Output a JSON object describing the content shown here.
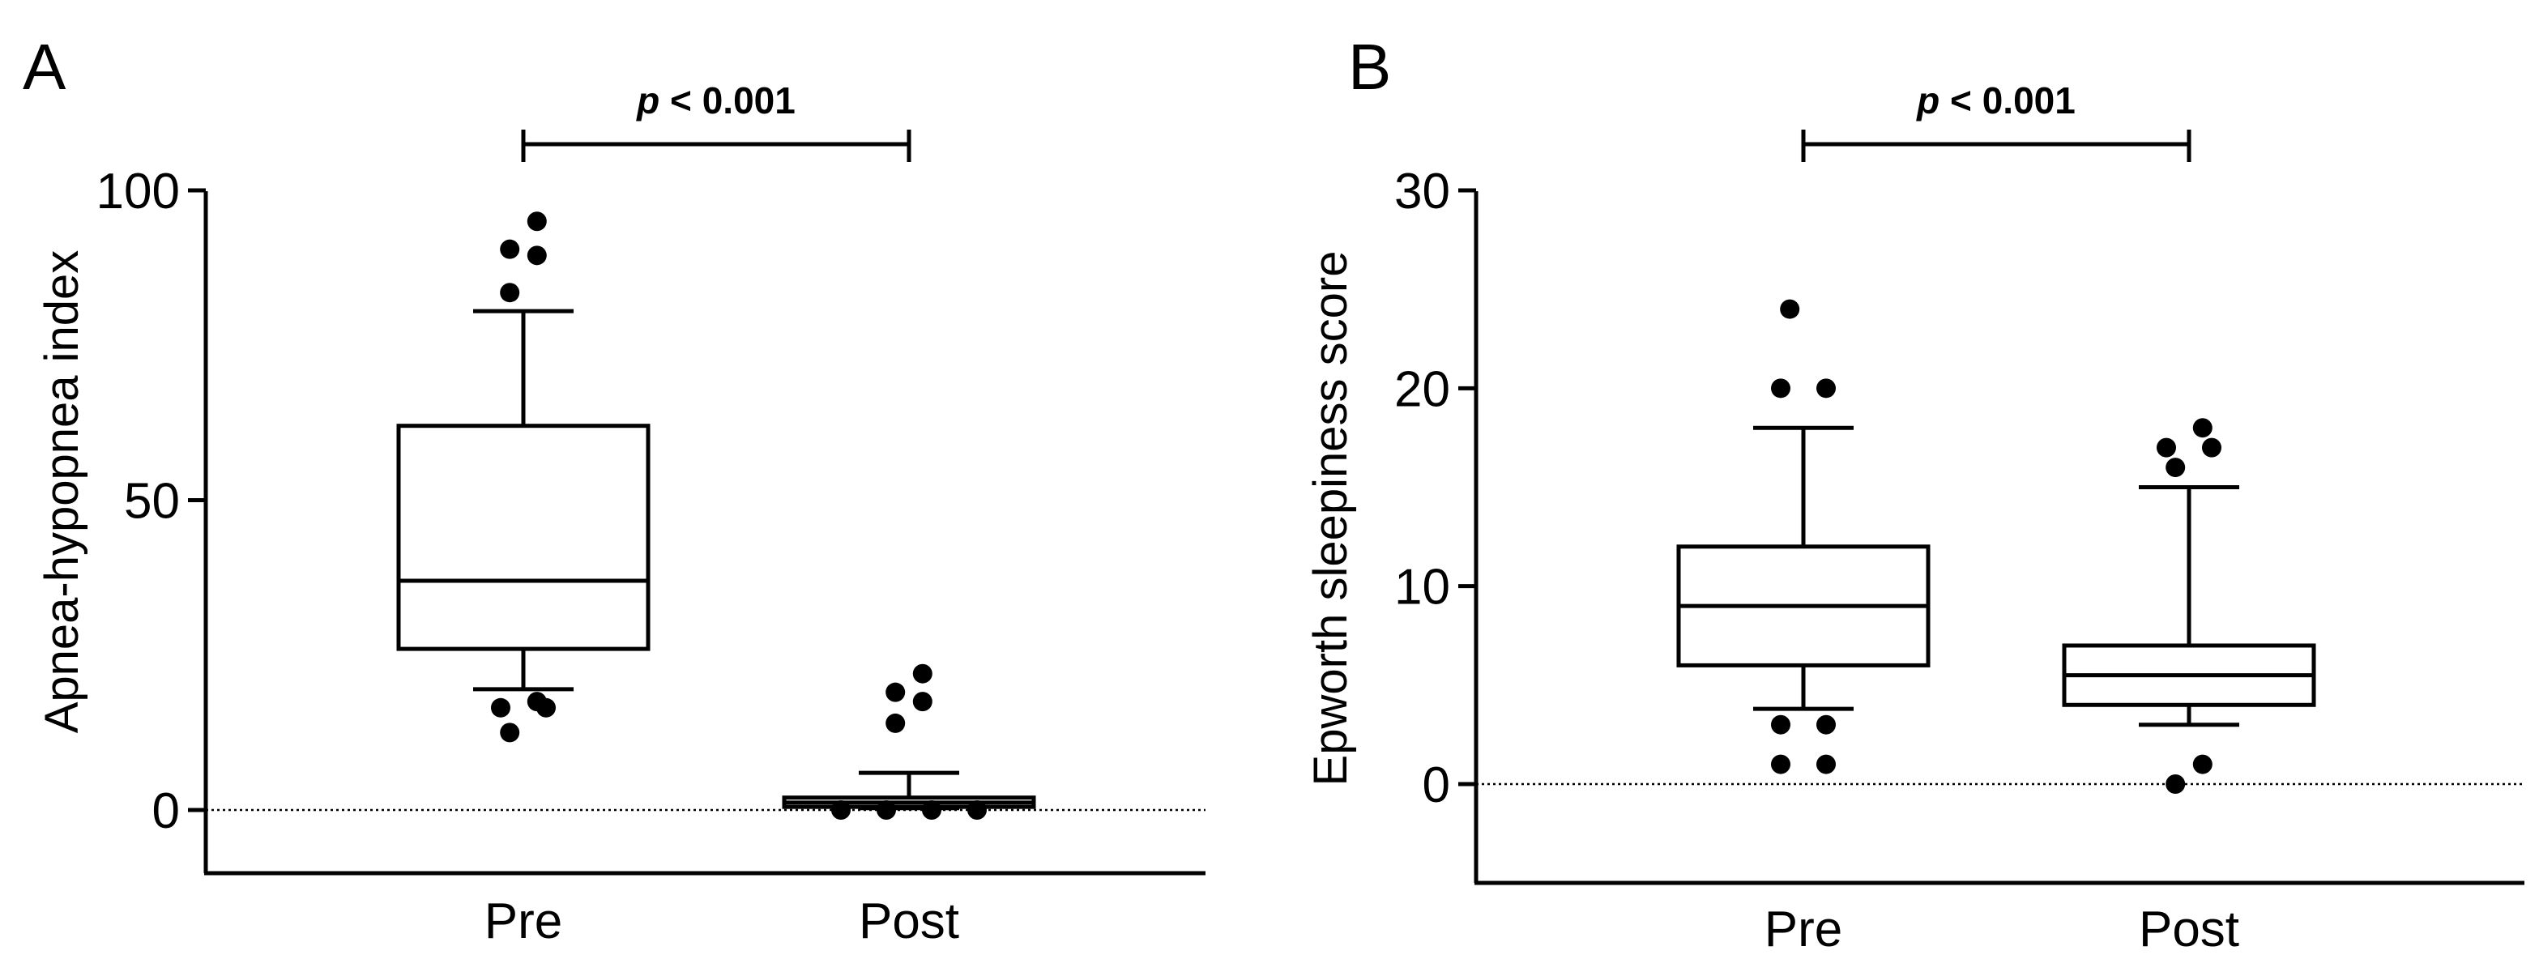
{
  "panels": [
    {
      "letter": "A",
      "ylabel": "Apnea-hypopnea index",
      "significance": {
        "p_symbol": "p",
        "rest": " < 0.001"
      },
      "yticks": [
        {
          "value": 0,
          "label": "0"
        },
        {
          "value": 50,
          "label": "50"
        },
        {
          "value": 100,
          "label": "100"
        }
      ]
    },
    {
      "letter": "B",
      "ylabel": "Epworth sleepiness score",
      "significance": {
        "p_symbol": "p",
        "rest": " < 0.001"
      },
      "yticks": [
        {
          "value": 0,
          "label": "0"
        },
        {
          "value": 10,
          "label": "10"
        },
        {
          "value": 20,
          "label": "20"
        },
        {
          "value": 30,
          "label": "30"
        }
      ]
    }
  ],
  "chart_data": [
    {
      "type": "box",
      "ylabel": "Apnea-hypopnea index",
      "ylim": [
        -10,
        100
      ],
      "reference_line": 0,
      "categories": [
        "Pre",
        "Post"
      ],
      "boxes": [
        {
          "name": "Pre",
          "whisker_low": 19.5,
          "q1": 26,
          "median": 37,
          "q3": 62,
          "whisker_high": 80.5,
          "outliers": [
            12.5,
            16.5,
            16.5,
            17.5,
            83.5,
            89.5,
            90.5,
            95
          ]
        },
        {
          "name": "Post",
          "whisker_low": 0.3,
          "q1": 0.5,
          "median": 1.2,
          "q3": 2,
          "whisker_high": 6,
          "outliers": [
            0,
            0,
            0,
            0,
            14,
            17.5,
            19,
            22
          ]
        }
      ],
      "significance": "p < 0.001"
    },
    {
      "type": "box",
      "ylabel": "Epworth sleepiness score",
      "ylim": [
        -5,
        30
      ],
      "reference_line": 0,
      "categories": [
        "Pre",
        "Post"
      ],
      "boxes": [
        {
          "name": "Pre",
          "whisker_low": 3.8,
          "q1": 6,
          "median": 9,
          "q3": 12,
          "whisker_high": 18,
          "outliers": [
            1,
            1,
            3,
            3,
            20,
            20,
            24
          ]
        },
        {
          "name": "Post",
          "whisker_low": 3,
          "q1": 4,
          "median": 5.5,
          "q3": 7,
          "whisker_high": 15,
          "outliers": [
            0,
            1,
            16,
            17,
            17,
            18
          ]
        }
      ],
      "significance": "p < 0.001"
    }
  ]
}
